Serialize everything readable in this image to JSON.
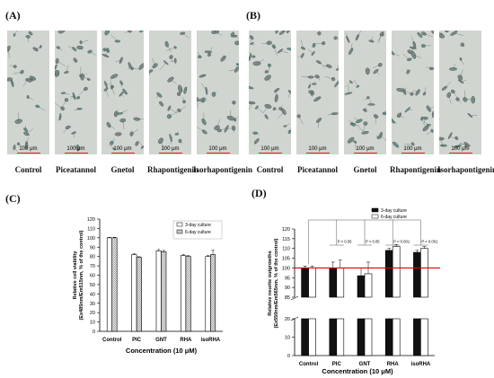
{
  "panels": {
    "a_label": "(A)",
    "b_label": "(B)",
    "c_label": "(C)",
    "d_label": "(D)"
  },
  "micrographs": {
    "scale_text": "100 μm",
    "a_labels": [
      "Control",
      "Piceatannol",
      "Gnetol",
      "Rhapontigenin",
      "Isorhapontigenin"
    ],
    "b_labels": [
      "Control",
      "Piceatannol",
      "Gnetol",
      "Rhapontigenin",
      "Isorhapontigenin"
    ]
  },
  "colors": {
    "micro_bg": "#d9dcd6",
    "cell": "#7d8a86",
    "cell_edge": "#3f4e4b",
    "teal_stain": "#3aa0a8",
    "scale_bar": "#e02020",
    "bar_black": "#111111",
    "reference_line": "#dd0000",
    "bracket": "#555555"
  },
  "chart_data": [
    {
      "panel": "(C)",
      "type": "bar",
      "categories": [
        "Control",
        "PIC",
        "GNT",
        "RHA",
        "isoRHA"
      ],
      "series": [
        {
          "name": "3-day culture",
          "values": [
            100,
            82,
            86,
            81,
            80
          ],
          "errors": [
            0.5,
            0.8,
            1.5,
            1,
            1
          ]
        },
        {
          "name": "6-day culture",
          "values": [
            100,
            79,
            85,
            80,
            82
          ],
          "errors": [
            0.5,
            0.8,
            1.5,
            1,
            5
          ]
        }
      ],
      "ylabel": "Relative cell viability (Ex485nm/Em515nm, % of the control)",
      "xlabel": "Concentration (10 μM)",
      "ylim": [
        0,
        120
      ],
      "yticks": [
        0,
        10,
        20,
        30,
        40,
        50,
        60,
        70,
        80,
        90,
        100,
        110,
        120
      ],
      "legend": "top-right"
    },
    {
      "panel": "(D)",
      "type": "bar",
      "categories": [
        "Control",
        "PIC",
        "GNT",
        "RHA",
        "isoRHA"
      ],
      "series": [
        {
          "name": "3-day culture",
          "values": [
            100,
            100,
            96,
            109,
            108
          ],
          "errors": [
            1,
            3,
            4,
            1,
            1
          ]
        },
        {
          "name": "6-day culture",
          "values": [
            100,
            100,
            97,
            111,
            110
          ],
          "errors": [
            1,
            4,
            6,
            1,
            1
          ]
        }
      ],
      "ylabel": "Relative neurite outgrowths (Ex550nm/Em565nm, % of the control)",
      "xlabel": "Concentration (10 μM)",
      "ylim": [
        0,
        120
      ],
      "axis_break": [
        20,
        85
      ],
      "upper_ticks": [
        85,
        90,
        95,
        100,
        105,
        110,
        115,
        120
      ],
      "lower_ticks": [
        0,
        10,
        20
      ],
      "reference_line": 100,
      "significance": [
        "P < 0.05",
        "P < 0.05",
        "P < 0.001",
        "P < 0.001"
      ],
      "legend": "top-center"
    }
  ]
}
